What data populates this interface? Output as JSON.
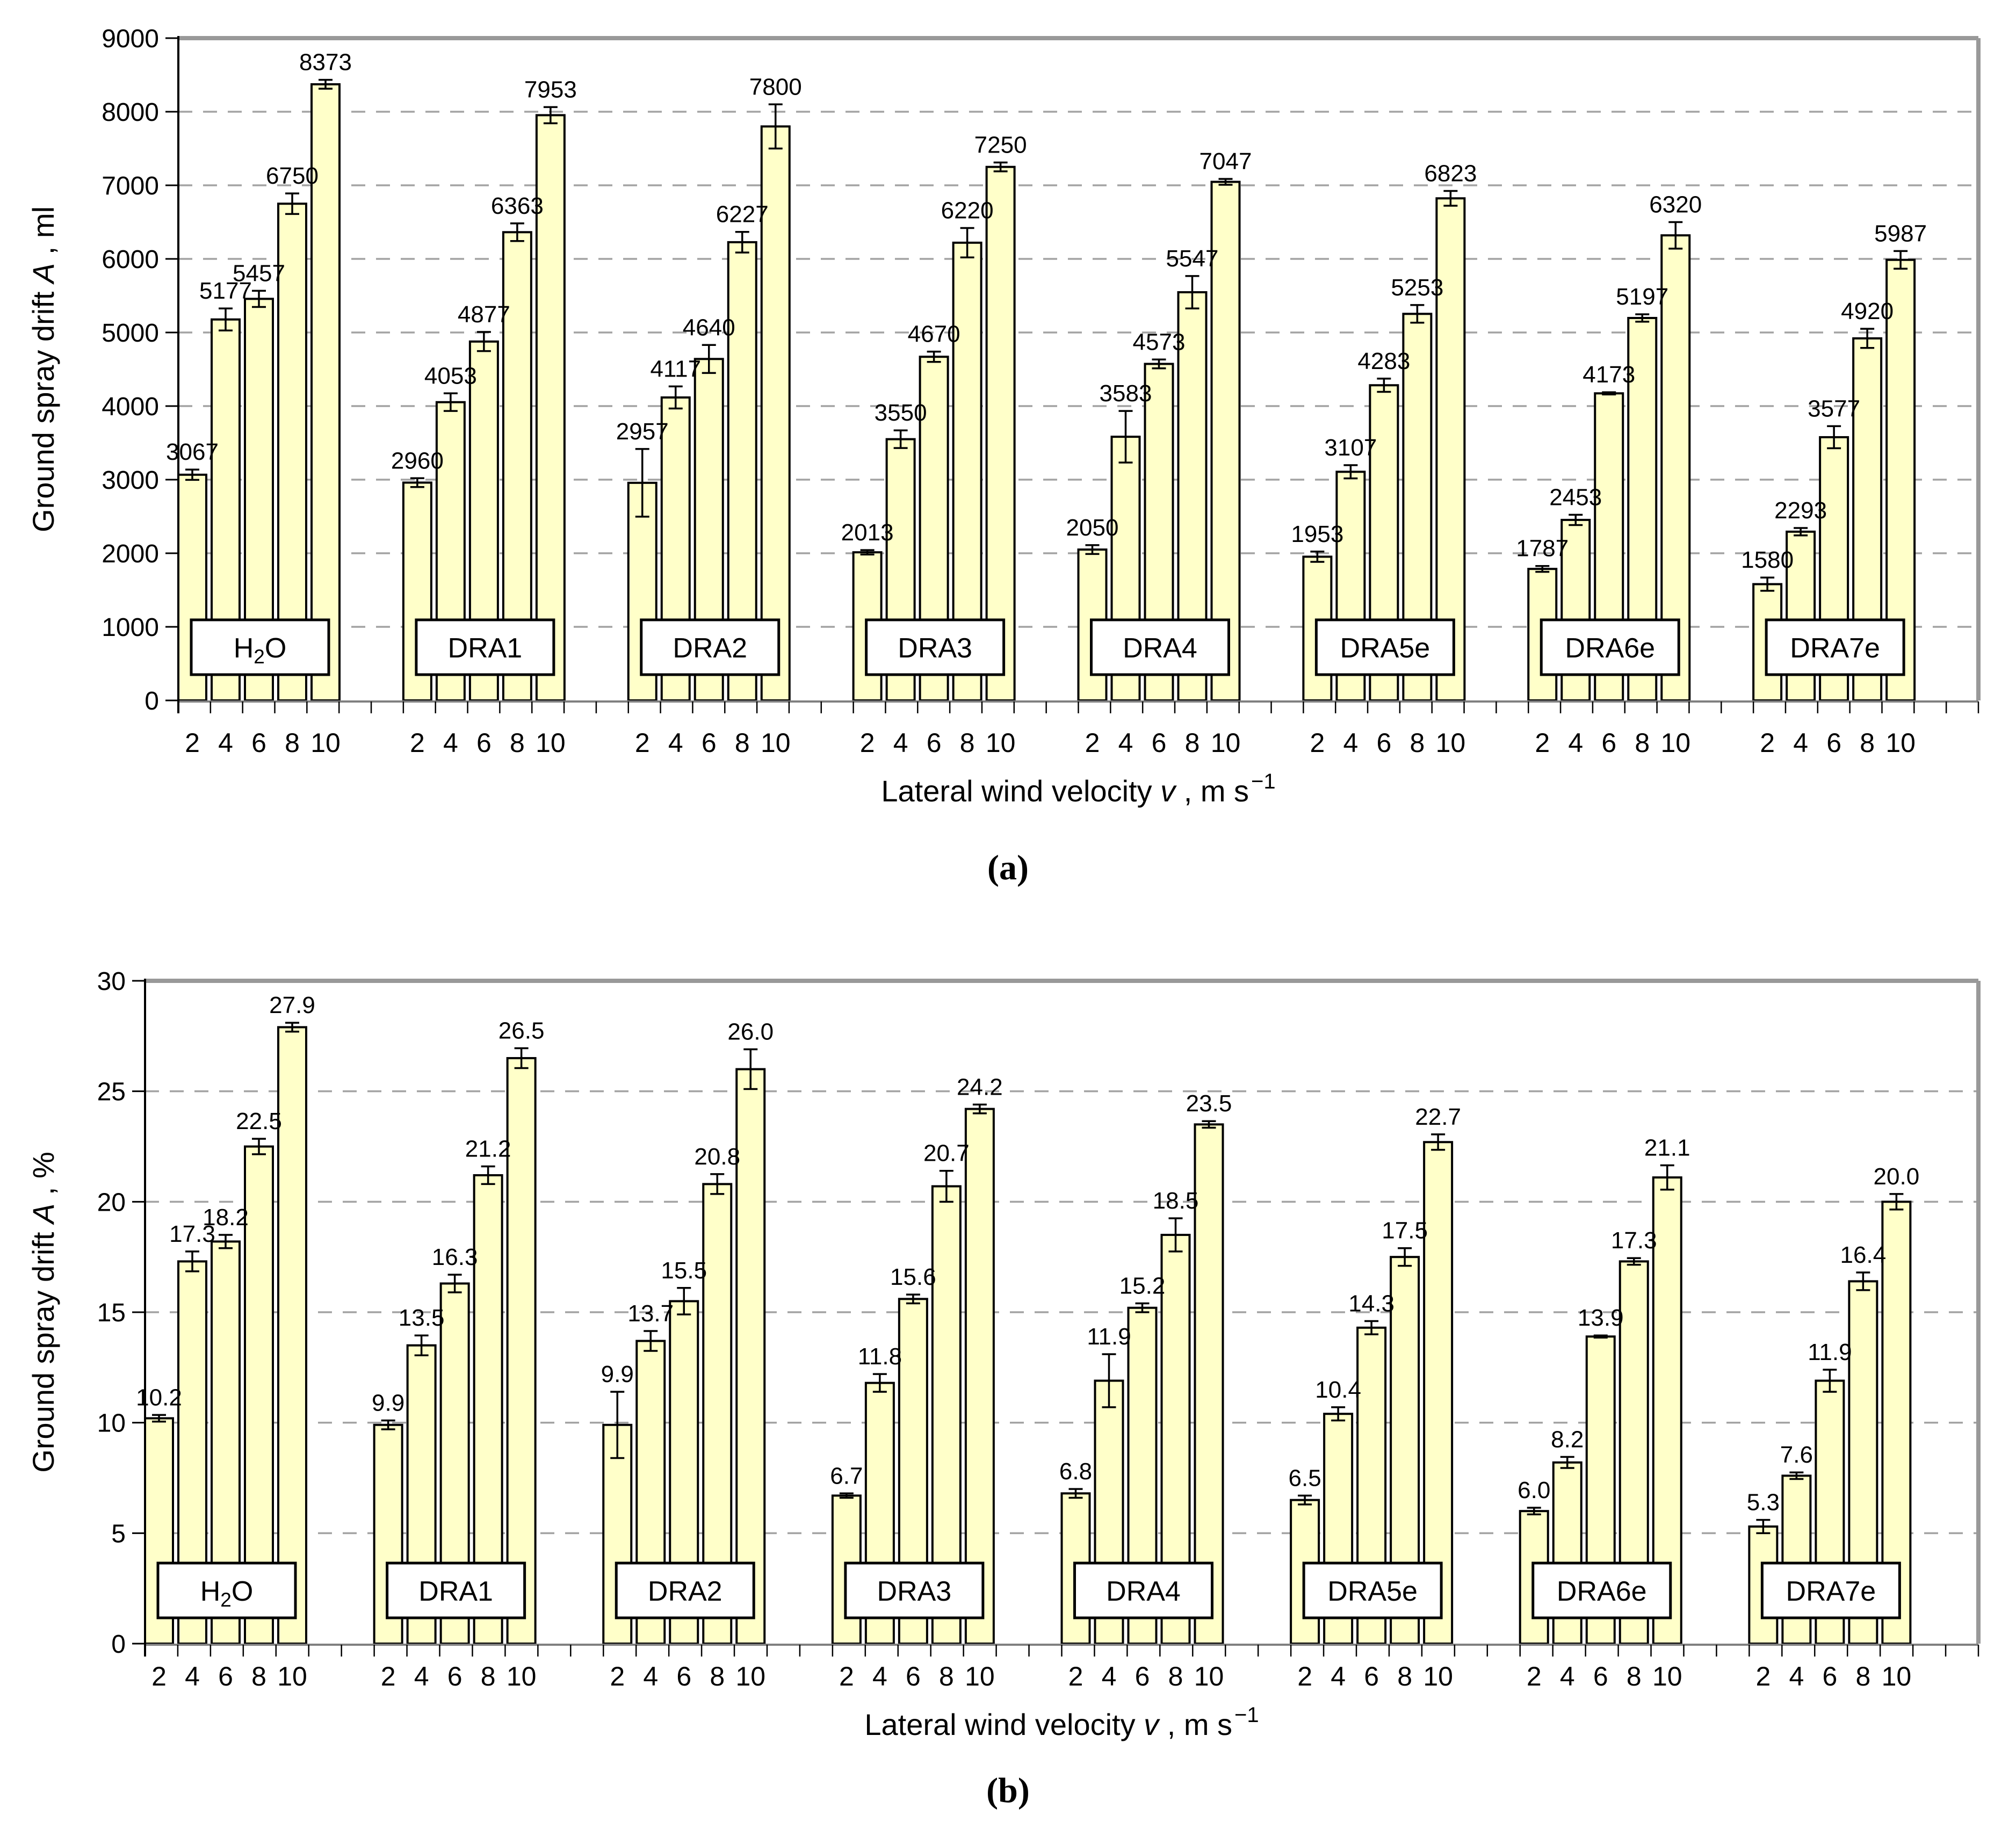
{
  "figure": {
    "caption_a": "(a)",
    "caption_b": "(b)",
    "colors": {
      "bar_fill": "#FFFFC9",
      "bar_border": "#000000",
      "gridline": "#A3A3A3",
      "plot_border": "#999999",
      "category_axis": "#808080",
      "value_axis": "#000000",
      "label_box_fill": "#FFFFFF",
      "text": "#000000"
    }
  },
  "chart_data": [
    {
      "id": "a",
      "type": "bar",
      "ylabel": [
        {
          "t": "Ground spray drift "
        },
        {
          "t": "A",
          "italic": true
        },
        {
          "t": " , ml"
        }
      ],
      "xlabel": [
        {
          "t": "Lateral wind velocity  "
        },
        {
          "t": "v",
          "italic": true
        },
        {
          "t": " , m s"
        },
        {
          "t": "−1",
          "sup": true
        }
      ],
      "ylim": [
        0,
        9000
      ],
      "ytick_step": 1000,
      "grid": true,
      "decimals": 0,
      "categories": [
        "2",
        "4",
        "6",
        "8",
        "10"
      ],
      "groups": [
        {
          "label": "H₂O",
          "values": [
            3067,
            5177,
            5457,
            6750,
            8373
          ],
          "errors": [
            70,
            150,
            110,
            140,
            60
          ]
        },
        {
          "label": "DRA1",
          "values": [
            2960,
            4053,
            4877,
            6363,
            7953
          ],
          "errors": [
            60,
            120,
            130,
            120,
            110
          ]
        },
        {
          "label": "DRA2",
          "values": [
            2957,
            4117,
            4640,
            6227,
            7800
          ],
          "errors": [
            460,
            150,
            190,
            140,
            300
          ]
        },
        {
          "label": "DRA3",
          "values": [
            2013,
            3550,
            4670,
            6220,
            7250
          ],
          "errors": [
            30,
            120,
            70,
            200,
            60
          ]
        },
        {
          "label": "DRA4",
          "values": [
            2050,
            3583,
            4573,
            5547,
            7047
          ],
          "errors": [
            60,
            350,
            60,
            220,
            40
          ]
        },
        {
          "label": "DRA5e",
          "values": [
            1953,
            3107,
            4283,
            5253,
            6823
          ],
          "errors": [
            70,
            90,
            90,
            120,
            100
          ]
        },
        {
          "label": "DRA6e",
          "values": [
            1787,
            2453,
            4173,
            5197,
            6320
          ],
          "errors": [
            40,
            70,
            15,
            50,
            180
          ]
        },
        {
          "label": "DRA7e",
          "values": [
            1580,
            2293,
            3577,
            4920,
            5987
          ],
          "errors": [
            90,
            50,
            150,
            130,
            120
          ]
        }
      ]
    },
    {
      "id": "b",
      "type": "bar",
      "ylabel": [
        {
          "t": "Ground spray drift "
        },
        {
          "t": "A",
          "italic": true
        },
        {
          "t": " , %"
        }
      ],
      "xlabel": [
        {
          "t": "Lateral wind velocity  "
        },
        {
          "t": "v",
          "italic": true
        },
        {
          "t": " , m s"
        },
        {
          "t": "−1",
          "sup": true
        }
      ],
      "ylim": [
        0,
        30
      ],
      "ytick_step": 5,
      "grid": true,
      "decimals": 1,
      "categories": [
        "2",
        "4",
        "6",
        "8",
        "10"
      ],
      "groups": [
        {
          "label": "H₂O",
          "values": [
            10.2,
            17.3,
            18.2,
            22.5,
            27.9
          ],
          "errors": [
            0.15,
            0.45,
            0.3,
            0.35,
            0.2
          ]
        },
        {
          "label": "DRA1",
          "values": [
            9.9,
            13.5,
            16.3,
            21.2,
            26.5
          ],
          "errors": [
            0.2,
            0.45,
            0.4,
            0.4,
            0.45
          ]
        },
        {
          "label": "DRA2",
          "values": [
            9.9,
            13.7,
            15.5,
            20.8,
            26.0
          ],
          "errors": [
            1.5,
            0.45,
            0.6,
            0.45,
            0.9
          ]
        },
        {
          "label": "DRA3",
          "values": [
            6.7,
            11.8,
            15.6,
            20.7,
            24.2
          ],
          "errors": [
            0.1,
            0.4,
            0.2,
            0.7,
            0.2
          ]
        },
        {
          "label": "DRA4",
          "values": [
            6.8,
            11.9,
            15.2,
            18.5,
            23.5
          ],
          "errors": [
            0.2,
            1.2,
            0.2,
            0.75,
            0.15
          ]
        },
        {
          "label": "DRA5e",
          "values": [
            6.5,
            10.4,
            14.3,
            17.5,
            22.7
          ],
          "errors": [
            0.2,
            0.3,
            0.3,
            0.4,
            0.35
          ]
        },
        {
          "label": "DRA6e",
          "values": [
            6.0,
            8.2,
            13.9,
            17.3,
            21.1
          ],
          "errors": [
            0.15,
            0.25,
            0.05,
            0.15,
            0.55
          ]
        },
        {
          "label": "DRA7e",
          "values": [
            5.3,
            7.6,
            11.9,
            16.4,
            20.0
          ],
          "errors": [
            0.3,
            0.15,
            0.5,
            0.4,
            0.35
          ]
        }
      ]
    }
  ]
}
